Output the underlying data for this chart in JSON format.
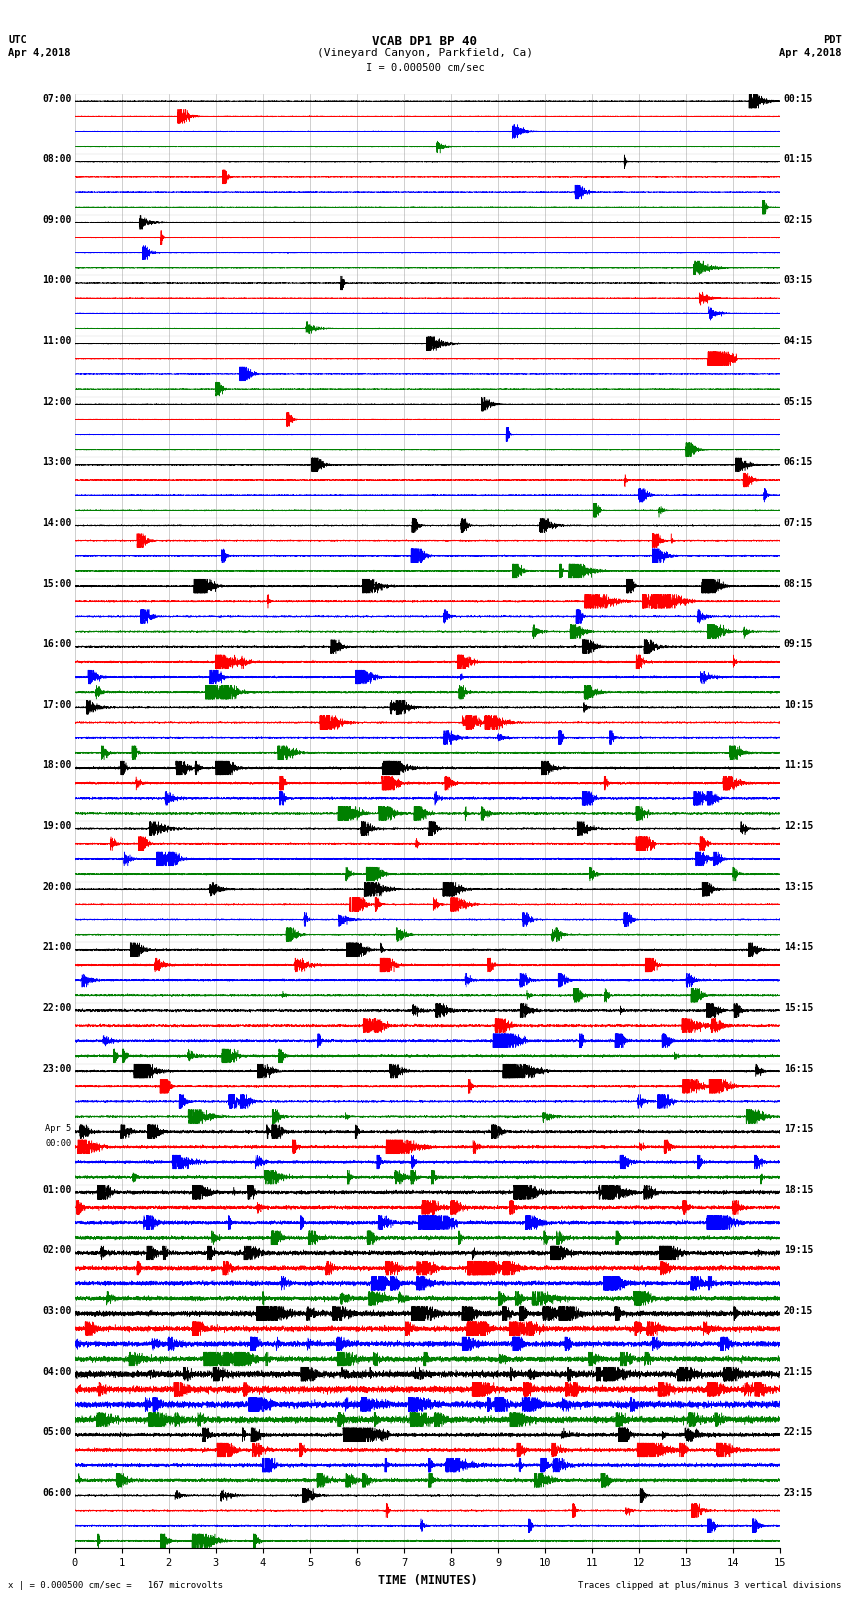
{
  "title_line1": "VCAB DP1 BP 40",
  "title_line2": "(Vineyard Canyon, Parkfield, Ca)",
  "scale_label": "I = 0.000500 cm/sec",
  "bottom_note_left": "x | = 0.000500 cm/sec =   167 microvolts",
  "bottom_note_right": "Traces clipped at plus/minus 3 vertical divisions",
  "xlabel": "TIME (MINUTES)",
  "utc_labels": [
    "07:00",
    "08:00",
    "09:00",
    "10:00",
    "11:00",
    "12:00",
    "13:00",
    "14:00",
    "15:00",
    "16:00",
    "17:00",
    "18:00",
    "19:00",
    "20:00",
    "21:00",
    "22:00",
    "23:00",
    "Apr 5\n00:00",
    "01:00",
    "02:00",
    "03:00",
    "04:00",
    "05:00",
    "06:00"
  ],
  "pdt_labels": [
    "00:15",
    "01:15",
    "02:15",
    "03:15",
    "04:15",
    "05:15",
    "06:15",
    "07:15",
    "08:15",
    "09:15",
    "10:15",
    "11:15",
    "12:15",
    "13:15",
    "14:15",
    "15:15",
    "16:15",
    "17:15",
    "18:15",
    "19:15",
    "20:15",
    "21:15",
    "22:15",
    "23:15"
  ],
  "num_rows": 24,
  "minutes_per_row": 15,
  "trace_colors": [
    "#000000",
    "#ff0000",
    "#0000ff",
    "#008000"
  ],
  "bg_color": "white",
  "noise_amp": [
    0.003,
    0.003,
    0.003,
    0.003,
    0.003,
    0.003,
    0.004,
    0.005,
    0.006,
    0.007,
    0.006,
    0.008,
    0.006,
    0.005,
    0.007,
    0.009,
    0.007,
    0.01,
    0.012,
    0.015,
    0.018,
    0.022,
    0.012,
    0.006
  ],
  "event_count": [
    1,
    1,
    1,
    1,
    1,
    1,
    2,
    3,
    4,
    5,
    4,
    6,
    5,
    4,
    5,
    6,
    5,
    7,
    8,
    10,
    12,
    14,
    8,
    4
  ]
}
